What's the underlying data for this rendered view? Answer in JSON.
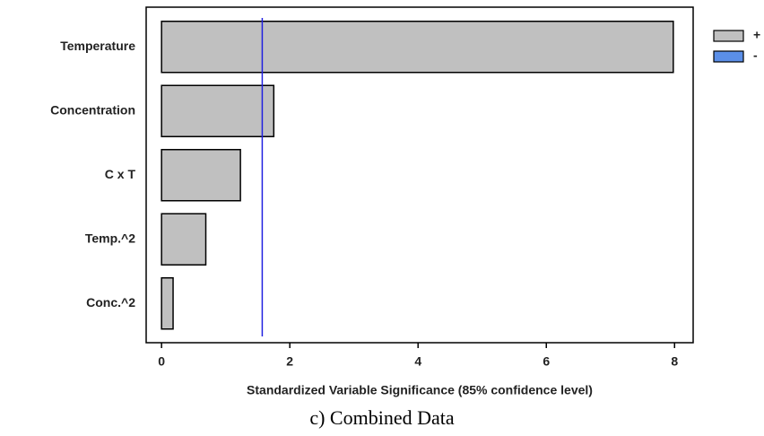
{
  "chart_data": {
    "type": "bar",
    "orientation": "horizontal",
    "caption": "c) Combined Data",
    "xlabel": "Standardized Variable Significance (85% confidence level)",
    "categories": [
      "Temperature",
      "Concentration",
      "C x T",
      "Temp.^2",
      "Conc.^2"
    ],
    "series": [
      {
        "name": "+",
        "color": "#c0c0c0",
        "values": [
          7.98,
          1.75,
          1.23,
          0.69,
          0.18
        ]
      },
      {
        "name": "-",
        "color": "#5b8fe8",
        "values": [
          null,
          null,
          null,
          null,
          null
        ]
      }
    ],
    "threshold": 1.57,
    "threshold_color": "#2020e0",
    "xlim": [
      -0.24,
      8.29
    ],
    "xticks": [
      0,
      2,
      4,
      6,
      8
    ]
  }
}
